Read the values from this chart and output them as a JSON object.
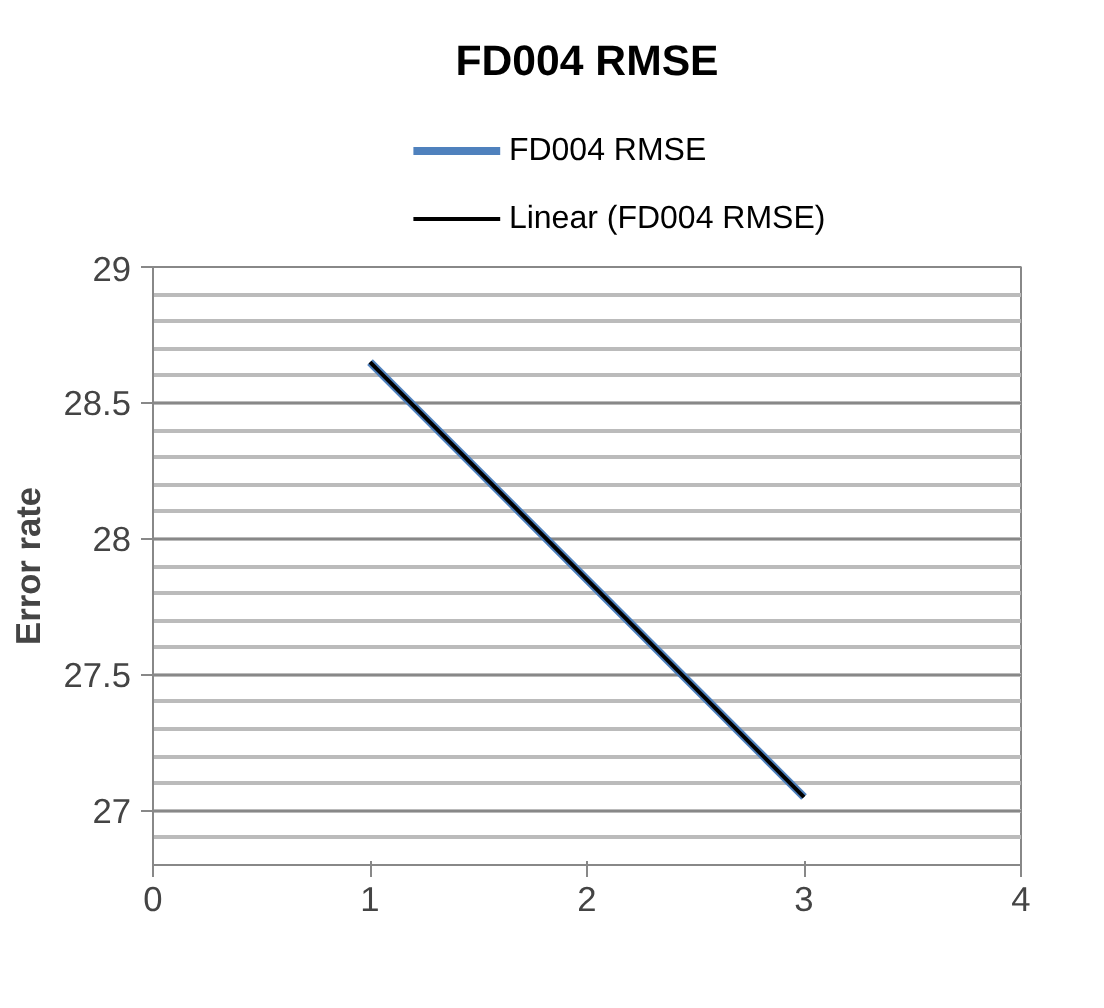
{
  "chart_data": {
    "type": "line",
    "title": "FD004 RMSE",
    "ylabel": "Error rate",
    "series": [
      {
        "name": "FD004 RMSE",
        "color": "#4f81bd",
        "x": [
          1,
          2,
          3
        ],
        "values": [
          28.65,
          27.85,
          27.05
        ]
      },
      {
        "name": "Linear (FD004 RMSE)",
        "color": "#000000",
        "x": [
          1,
          3
        ],
        "values": [
          28.65,
          27.05
        ]
      }
    ],
    "xlim": [
      0,
      4
    ],
    "xticks": [
      0,
      1,
      2,
      3,
      4
    ],
    "ylim": [
      26.8,
      29
    ],
    "yticks": [
      27,
      27.5,
      28,
      28.5,
      29
    ],
    "grid": "y",
    "legend": "top",
    "marker": "none",
    "line_style": "solid"
  }
}
